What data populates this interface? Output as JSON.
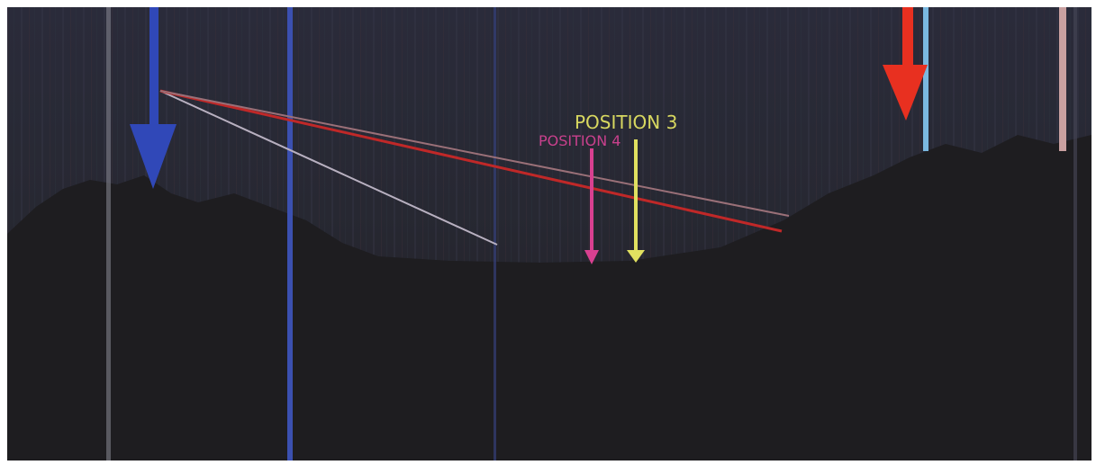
{
  "labels": [
    "POSITION 4",
    "POSITION 3"
  ]
}
